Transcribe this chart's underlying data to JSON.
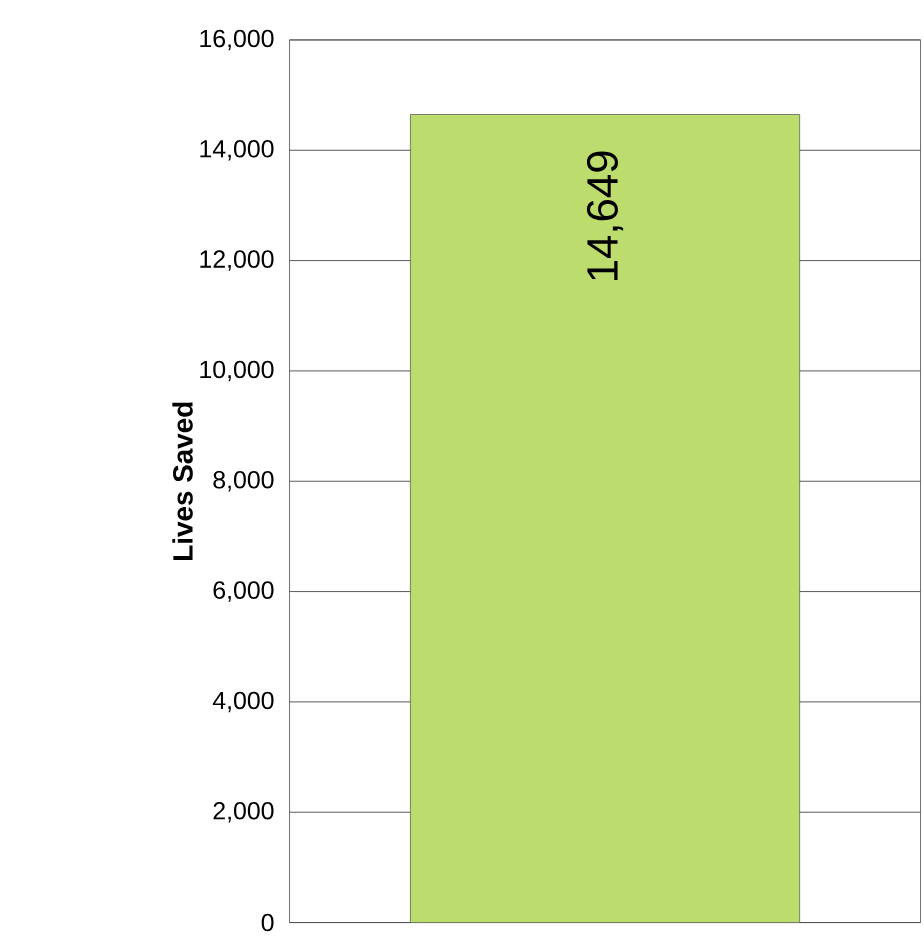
{
  "chart_data": {
    "type": "bar",
    "ylabel": "Lives Saved",
    "categories": [
      null
    ],
    "values": [
      14649
    ],
    "color": "#bcdc6e",
    "value_labels": [
      "14,649"
    ],
    "ylim": [
      0,
      16000
    ],
    "yticks": [
      0,
      {
        "value": 2000,
        "label": "2,000"
      },
      {
        "value": 4000,
        "label": "4,000"
      },
      {
        "value": 6000,
        "label": "6,000"
      },
      {
        "value": 8000,
        "label": "8,000"
      },
      {
        "value": 10000,
        "label": "10,000"
      },
      {
        "value": 12000,
        "label": "12,000"
      },
      {
        "value": 14000,
        "label": "14,000"
      },
      {
        "value": 16000,
        "label": "16,000"
      }
    ],
    "grid": "y"
  }
}
